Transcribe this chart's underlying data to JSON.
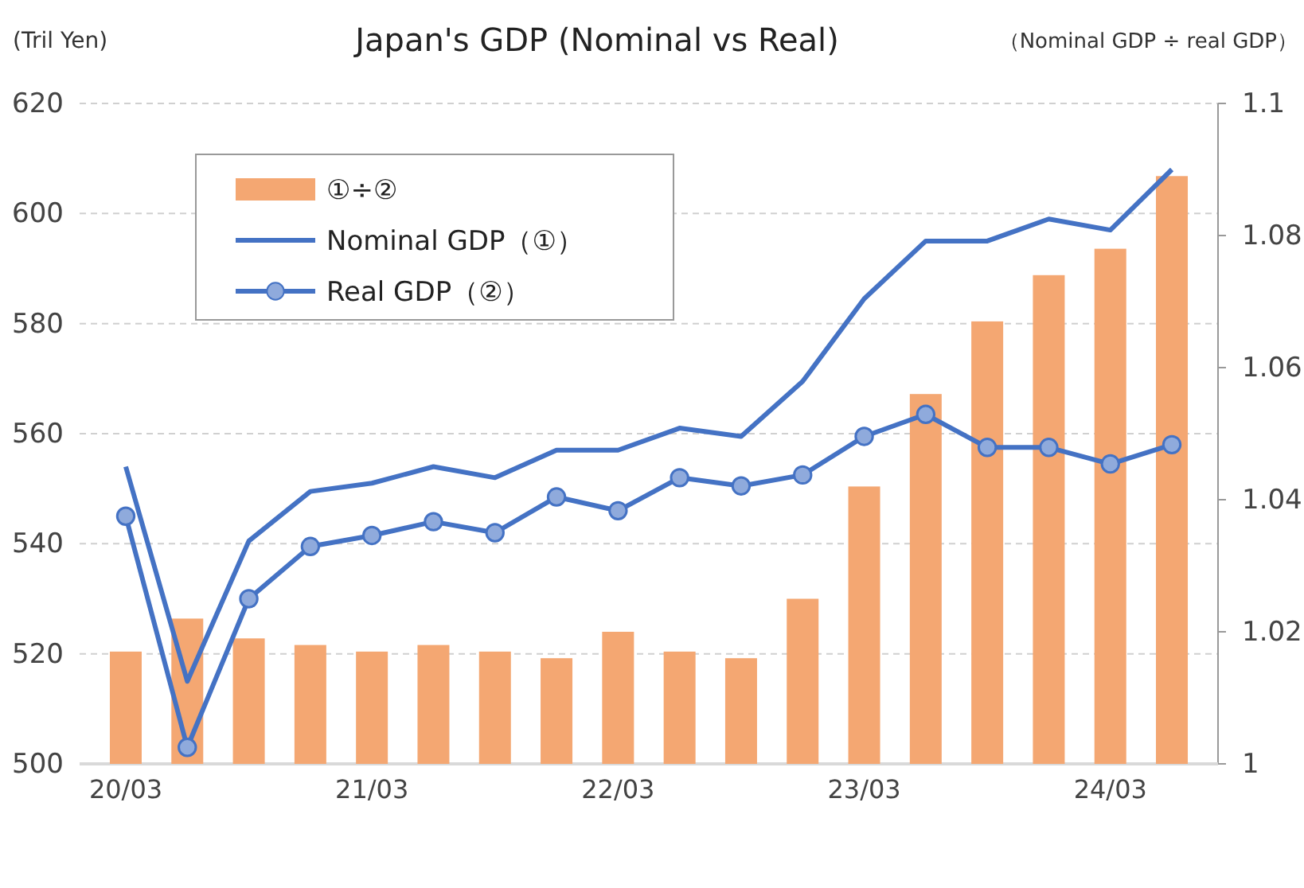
{
  "chart_data": {
    "type": "bar",
    "title": "Japan's GDP (Nominal vs Real)",
    "ylabel": "(Tril Yen)",
    "y2label": "（Nominal GDP ÷ real  GDP）",
    "categories": [
      "20/03",
      null,
      null,
      null,
      "21/03",
      null,
      null,
      null,
      "22/03",
      null,
      null,
      null,
      "23/03",
      null,
      null,
      null,
      "24/03",
      null
    ],
    "series": [
      {
        "name": "①÷②",
        "axis": "y2",
        "color": "#f4a772",
        "values": [
          1.017,
          1.022,
          1.019,
          1.018,
          1.017,
          1.018,
          1.017,
          1.016,
          1.02,
          1.017,
          1.016,
          1.025,
          1.042,
          1.056,
          1.067,
          1.074,
          1.078,
          1.089
        ]
      },
      {
        "name": "Nominal GDP（①）",
        "type": "line",
        "color": "#4472c4",
        "marker": "none",
        "values": [
          554,
          515,
          540.5,
          549.5,
          551,
          554,
          552,
          557,
          557,
          561,
          559.5,
          569.5,
          584.5,
          595,
          595,
          599,
          597,
          608
        ]
      },
      {
        "name": "Real GDP（②）",
        "type": "line",
        "color": "#4472c4",
        "marker": "circle",
        "values": [
          545,
          503,
          530,
          539.5,
          541.5,
          544,
          542,
          548.5,
          546,
          552,
          550.5,
          552.5,
          559.5,
          563.5,
          557.5,
          557.5,
          554.5,
          558
        ]
      }
    ],
    "ylim": [
      500,
      620
    ],
    "yticks": [
      500,
      520,
      540,
      560,
      580,
      600,
      620
    ],
    "y2lim": [
      1,
      1.1
    ],
    "y2ticks": [
      1,
      1.02,
      1.04,
      1.06,
      1.08,
      1.1
    ],
    "grid": "y",
    "legend": "top left",
    "line_style": "solid"
  }
}
